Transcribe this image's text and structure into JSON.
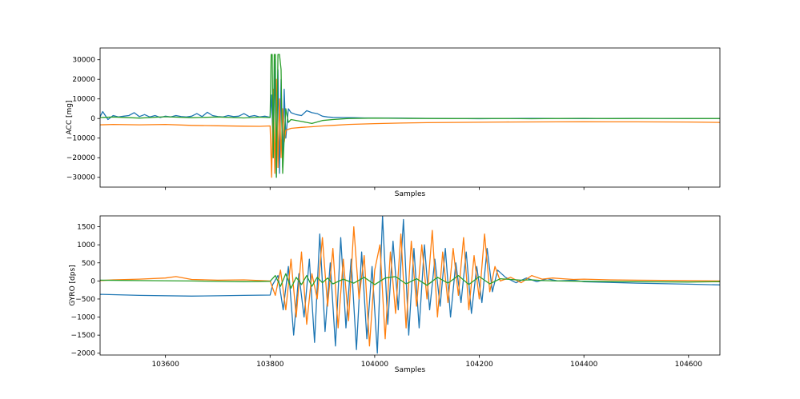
{
  "chart_data": [
    {
      "type": "line",
      "xlabel": "Samples",
      "ylabel": "ACC [mg]",
      "xlim": [
        103475,
        104660
      ],
      "ylim": [
        -35000,
        36000
      ],
      "xticks": [
        103600,
        103800,
        104000,
        104200,
        104400,
        104600
      ],
      "xtick_labels_visible": false,
      "yticks": [
        -30000,
        -20000,
        -10000,
        0,
        10000,
        20000,
        30000
      ],
      "ytick_labels": [
        "−30000",
        "−20000",
        "−10000",
        "0",
        "10000",
        "20000",
        "30000"
      ],
      "grid": false,
      "colors": [
        "#1f77b4",
        "#ff7f0e",
        "#2ca02c"
      ],
      "series": [
        {
          "color": "#1f77b4",
          "x": [
            103475,
            103480,
            103490,
            103500,
            103510,
            103520,
            103530,
            103540,
            103550,
            103560,
            103570,
            103580,
            103590,
            103600,
            103610,
            103620,
            103630,
            103640,
            103650,
            103660,
            103670,
            103680,
            103690,
            103700,
            103710,
            103720,
            103730,
            103740,
            103750,
            103760,
            103770,
            103780,
            103790,
            103800,
            103803,
            103806,
            103809,
            103812,
            103815,
            103818,
            103821,
            103824,
            103827,
            103830,
            103835,
            103840,
            103850,
            103860,
            103870,
            103880,
            103890,
            103900,
            103910,
            103920,
            103940,
            103960,
            103980,
            104000,
            104050,
            104100,
            104150,
            104200,
            104250,
            104300,
            104350,
            104400,
            104450,
            104500,
            104550,
            104600,
            104660
          ],
          "y": [
            1000,
            3500,
            -500,
            1500,
            800,
            1200,
            1500,
            3000,
            1000,
            2000,
            800,
            1500,
            500,
            1200,
            800,
            1500,
            1000,
            800,
            1200,
            2500,
            1000,
            3200,
            1500,
            1000,
            800,
            1500,
            1000,
            1200,
            2500,
            1000,
            1500,
            800,
            1200,
            600,
            12000,
            -20000,
            30000,
            -30000,
            25000,
            -28000,
            20000,
            -25000,
            15000,
            -10000,
            5000,
            3000,
            2000,
            1500,
            4000,
            3000,
            2500,
            1200,
            800,
            600,
            500,
            400,
            300,
            300,
            200,
            100,
            0,
            -100,
            0,
            100,
            0,
            -50,
            0,
            100,
            0,
            -50,
            0
          ]
        },
        {
          "color": "#ff7f0e",
          "x": [
            103475,
            103500,
            103550,
            103600,
            103650,
            103700,
            103750,
            103780,
            103800,
            103803,
            103806,
            103809,
            103812,
            103815,
            103818,
            103821,
            103824,
            103827,
            103830,
            103840,
            103860,
            103880,
            103900,
            103920,
            103950,
            104000,
            104050,
            104100,
            104150,
            104200,
            104250,
            104300,
            104350,
            104400,
            104450,
            104500,
            104550,
            104600,
            104660
          ],
          "y": [
            -3200,
            -3000,
            -3200,
            -3000,
            -3500,
            -3700,
            -3900,
            -4000,
            -3800,
            -30000,
            15000,
            -28000,
            20000,
            -25000,
            10000,
            -20000,
            5000,
            -12000,
            -6000,
            -5000,
            -4500,
            -4200,
            -3800,
            -3500,
            -3000,
            -2600,
            -2300,
            -2100,
            -2000,
            -1900,
            -1800,
            -1750,
            -1700,
            -1650,
            -1700,
            -1700,
            -1750,
            -1800,
            -2000
          ]
        },
        {
          "color": "#2ca02c",
          "x": [
            103475,
            103500,
            103550,
            103600,
            103650,
            103700,
            103750,
            103780,
            103800,
            103802,
            103804,
            103806,
            103808,
            103810,
            103812,
            103815,
            103818,
            103821,
            103824,
            103827,
            103830,
            103835,
            103840,
            103860,
            103880,
            103900,
            103920,
            103950,
            104000,
            104050,
            104100,
            104150,
            104200,
            104250,
            104300,
            104350,
            104400,
            104450,
            104500,
            104550,
            104600,
            104660
          ],
          "y": [
            500,
            800,
            200,
            900,
            400,
            800,
            300,
            700,
            500,
            32700,
            32700,
            -20000,
            32700,
            32700,
            -30000,
            32700,
            32700,
            25000,
            -28000,
            -10000,
            5000,
            -2000,
            -500,
            -1500,
            -2500,
            -1000,
            -500,
            0,
            200,
            100,
            0,
            -50,
            50,
            0,
            -100,
            0,
            100,
            -50,
            0,
            50,
            0,
            0
          ]
        }
      ]
    },
    {
      "type": "line",
      "xlabel": "Samples",
      "ylabel": "GYRO [dps]",
      "xlim": [
        103475,
        104660
      ],
      "ylim": [
        -2050,
        1800
      ],
      "xticks": [
        103600,
        103800,
        104000,
        104200,
        104400,
        104600
      ],
      "xtick_labels": [
        "103600",
        "103800",
        "104000",
        "104200",
        "104400",
        "104600"
      ],
      "yticks": [
        -2000,
        -1500,
        -1000,
        -500,
        0,
        500,
        1000,
        1500
      ],
      "ytick_labels": [
        "−2000",
        "−1500",
        "−1000",
        "−500",
        "0",
        "500",
        "1000",
        "1500"
      ],
      "grid": false,
      "colors": [
        "#1f77b4",
        "#ff7f0e",
        "#2ca02c"
      ],
      "series": [
        {
          "color": "#1f77b4",
          "x": [
            103475,
            103550,
            103650,
            103700,
            103750,
            103800,
            103805,
            103815,
            103825,
            103835,
            103845,
            103855,
            103865,
            103875,
            103885,
            103895,
            103905,
            103915,
            103925,
            103935,
            103945,
            103955,
            103965,
            103975,
            103985,
            103995,
            104005,
            104015,
            104025,
            104035,
            104045,
            104055,
            104065,
            104075,
            104085,
            104095,
            104105,
            104115,
            104125,
            104135,
            104145,
            104155,
            104165,
            104175,
            104185,
            104195,
            104205,
            104215,
            104225,
            104235,
            104250,
            104270,
            104290,
            104310,
            104330,
            104350,
            104380,
            104400,
            104500,
            104600,
            104660
          ],
          "y": [
            -370,
            -400,
            -420,
            -410,
            -400,
            -390,
            -100,
            150,
            -800,
            400,
            -1500,
            200,
            -1000,
            600,
            -1700,
            1300,
            -1400,
            500,
            -1800,
            1200,
            -1300,
            600,
            -1900,
            800,
            -1600,
            400,
            -2000,
            1800,
            -1200,
            1100,
            -800,
            1700,
            -1500,
            900,
            -1300,
            1000,
            -800,
            600,
            -700,
            900,
            -1000,
            500,
            -600,
            800,
            -900,
            400,
            -600,
            900,
            -300,
            300,
            100,
            -50,
            80,
            -20,
            60,
            0,
            20,
            -20,
            -60,
            -90,
            -110
          ]
        },
        {
          "color": "#ff7f0e",
          "x": [
            103475,
            103500,
            103550,
            103600,
            103620,
            103650,
            103700,
            103750,
            103800,
            103810,
            103820,
            103830,
            103840,
            103850,
            103860,
            103870,
            103880,
            103890,
            103900,
            103910,
            103920,
            103930,
            103940,
            103950,
            103960,
            103970,
            103980,
            103990,
            104000,
            104010,
            104020,
            104030,
            104040,
            104050,
            104060,
            104070,
            104080,
            104090,
            104100,
            104110,
            104120,
            104130,
            104140,
            104150,
            104160,
            104170,
            104180,
            104190,
            104200,
            104210,
            104220,
            104230,
            104240,
            104260,
            104280,
            104300,
            104320,
            104340,
            104360,
            104380,
            104400,
            104450,
            104500,
            104600,
            104660
          ],
          "y": [
            10,
            30,
            50,
            80,
            120,
            40,
            20,
            30,
            0,
            -400,
            300,
            -800,
            600,
            -1000,
            800,
            -1200,
            200,
            -500,
            1200,
            -700,
            900,
            -1300,
            600,
            -1100,
            1500,
            -500,
            700,
            -1800,
            300,
            1000,
            -1600,
            800,
            -900,
            1300,
            -1300,
            1100,
            -700,
            1000,
            -500,
            1400,
            -1000,
            800,
            -600,
            900,
            -400,
            1200,
            -800,
            700,
            -500,
            1300,
            -300,
            400,
            0,
            100,
            -50,
            150,
            50,
            80,
            60,
            40,
            50,
            30,
            20,
            10,
            0
          ]
        },
        {
          "color": "#2ca02c",
          "x": [
            103475,
            103550,
            103650,
            103750,
            103800,
            103810,
            103820,
            103830,
            103840,
            103850,
            103860,
            103870,
            103880,
            103890,
            103900,
            103910,
            103920,
            103940,
            103960,
            103980,
            104000,
            104020,
            104040,
            104060,
            104080,
            104100,
            104120,
            104140,
            104160,
            104180,
            104200,
            104220,
            104240,
            104260,
            104280,
            104300,
            104320,
            104350,
            104400,
            104500,
            104600,
            104660
          ],
          "y": [
            20,
            10,
            0,
            -20,
            -10,
            150,
            -150,
            200,
            -200,
            100,
            -100,
            150,
            -150,
            100,
            -50,
            80,
            -80,
            50,
            -60,
            100,
            -100,
            80,
            120,
            -80,
            60,
            -120,
            100,
            -60,
            150,
            -100,
            120,
            -80,
            60,
            40,
            20,
            30,
            10,
            0,
            -10,
            -20,
            -30,
            -20
          ]
        }
      ]
    }
  ]
}
